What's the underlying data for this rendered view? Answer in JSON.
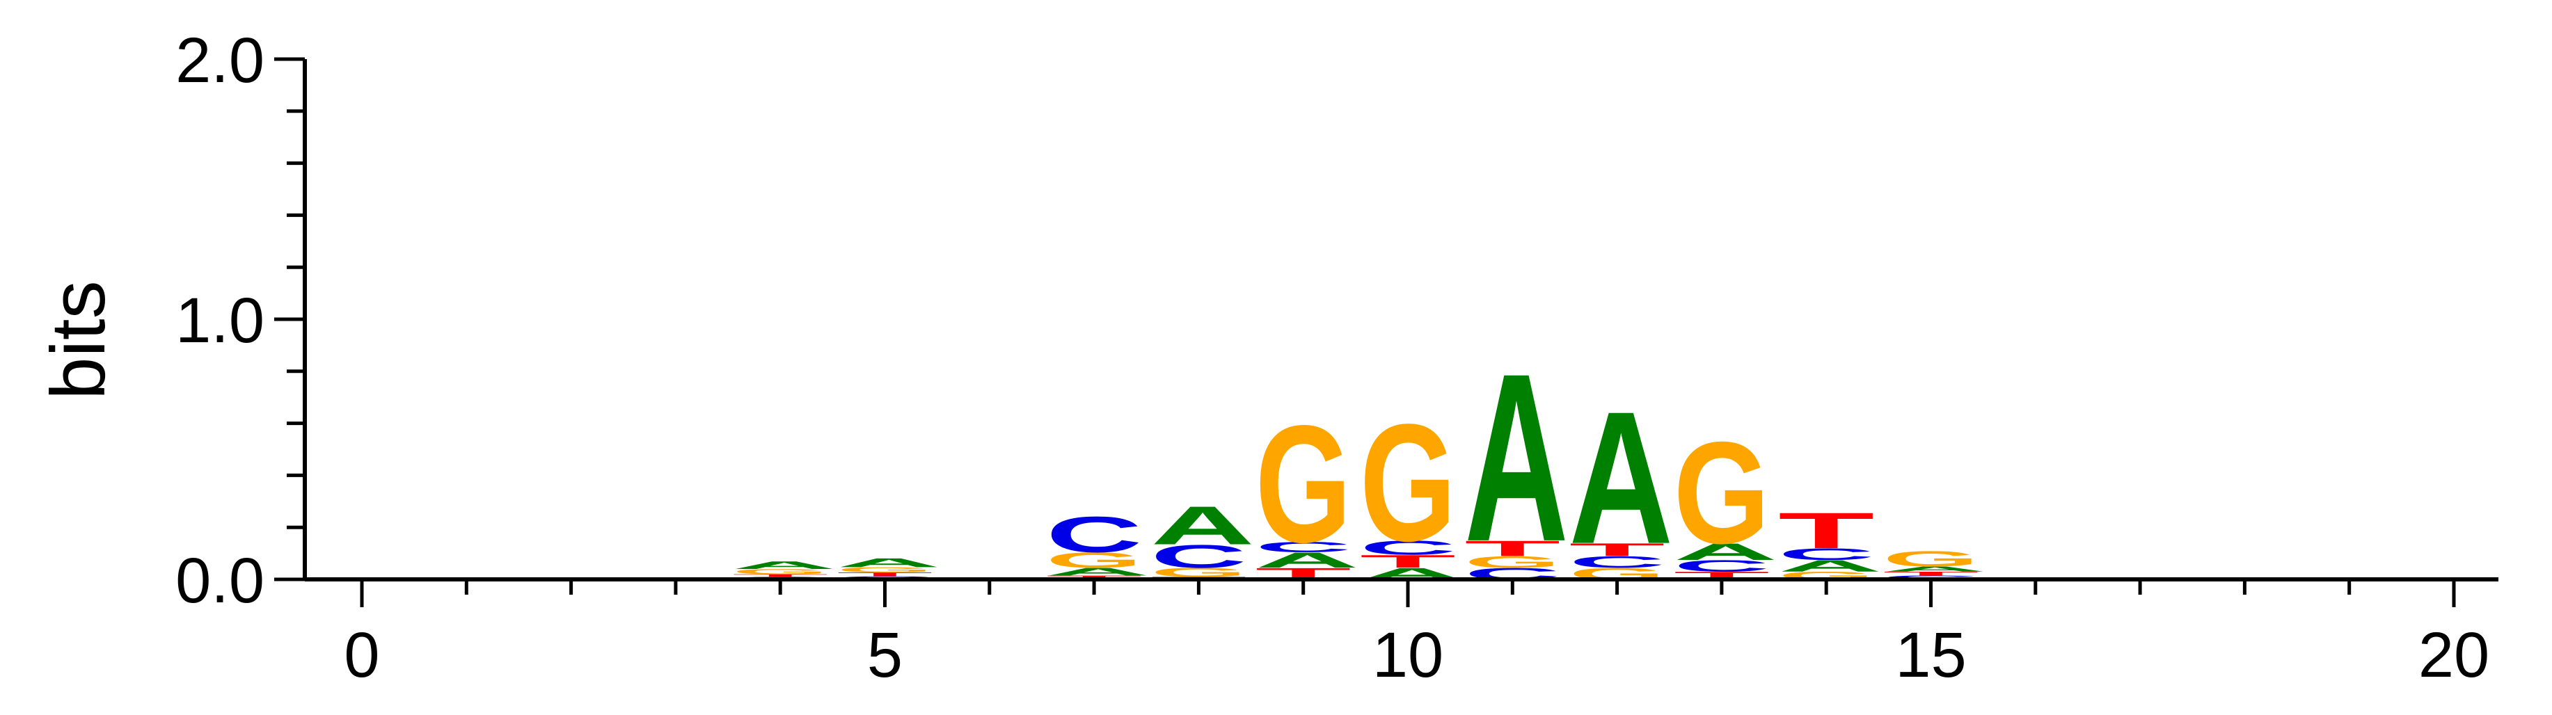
{
  "chart_data": {
    "type": "sequence-logo",
    "ylabel": "bits",
    "xlim": [
      0,
      20
    ],
    "ylim": [
      0,
      2
    ],
    "x_ticks": [
      0,
      5,
      10,
      15,
      20
    ],
    "y_ticks": [
      "0.0",
      "1.0",
      "2.0"
    ],
    "letter_colors": {
      "A": "#008000",
      "C": "#0000e6",
      "G": "#ffa500",
      "T": "#ff0000"
    },
    "positions": [
      {
        "x": 4,
        "stack": [
          [
            "C",
            0.01
          ],
          [
            "T",
            0.01
          ],
          [
            "G",
            0.02
          ],
          [
            "A",
            0.03
          ]
        ]
      },
      {
        "x": 5,
        "stack": [
          [
            "C",
            0.012
          ],
          [
            "T",
            0.015
          ],
          [
            "G",
            0.02
          ],
          [
            "A",
            0.035
          ]
        ]
      },
      {
        "x": 7,
        "stack": [
          [
            "T",
            0.015
          ],
          [
            "A",
            0.03
          ],
          [
            "G",
            0.06
          ],
          [
            "C",
            0.14
          ]
        ]
      },
      {
        "x": 8,
        "stack": [
          [
            "T",
            0.01
          ],
          [
            "G",
            0.035
          ],
          [
            "C",
            0.09
          ],
          [
            "A",
            0.15
          ]
        ]
      },
      {
        "x": 9,
        "stack": [
          [
            "T",
            0.045
          ],
          [
            "A",
            0.06
          ],
          [
            "C",
            0.04
          ],
          [
            "G",
            0.46
          ]
        ]
      },
      {
        "x": 10,
        "stack": [
          [
            "A",
            0.045
          ],
          [
            "T",
            0.05
          ],
          [
            "C",
            0.055
          ],
          [
            "G",
            0.46
          ]
        ]
      },
      {
        "x": 11,
        "stack": [
          [
            "C",
            0.045
          ],
          [
            "G",
            0.045
          ],
          [
            "T",
            0.06
          ],
          [
            "A",
            0.66
          ]
        ]
      },
      {
        "x": 12,
        "stack": [
          [
            "G",
            0.045
          ],
          [
            "C",
            0.045
          ],
          [
            "T",
            0.05
          ],
          [
            "A",
            0.52
          ]
        ]
      },
      {
        "x": 13,
        "stack": [
          [
            "T",
            0.03
          ],
          [
            "C",
            0.045
          ],
          [
            "A",
            0.065
          ],
          [
            "G",
            0.4
          ]
        ]
      },
      {
        "x": 14,
        "stack": [
          [
            "G",
            0.03
          ],
          [
            "A",
            0.045
          ],
          [
            "C",
            0.045
          ],
          [
            "T",
            0.14
          ]
        ]
      },
      {
        "x": 15,
        "stack": [
          [
            "C",
            0.015
          ],
          [
            "T",
            0.015
          ],
          [
            "A",
            0.02
          ],
          [
            "G",
            0.06
          ]
        ]
      }
    ]
  }
}
